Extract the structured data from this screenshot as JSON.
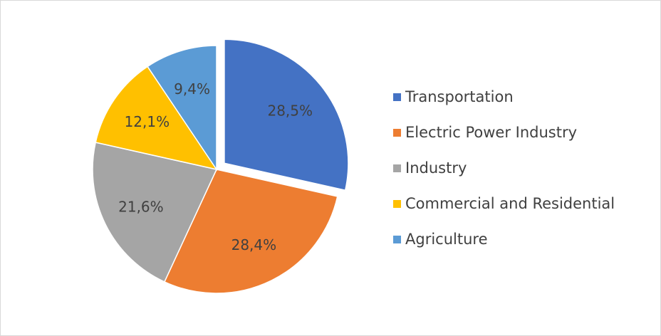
{
  "chart_data": {
    "type": "pie",
    "title": "",
    "legend_position": "right",
    "exploded_slice": "Transportation",
    "slices": [
      {
        "label": "Transportation",
        "value": 28.5,
        "display": "28,5%",
        "color": "#4472C4"
      },
      {
        "label": "Electric Power Industry",
        "value": 28.4,
        "display": "28,4%",
        "color": "#ED7D31"
      },
      {
        "label": "Industry",
        "value": 21.6,
        "display": "21,6%",
        "color": "#A5A5A5"
      },
      {
        "label": "Commercial and Residential",
        "value": 12.1,
        "display": "12,1%",
        "color": "#FFC000"
      },
      {
        "label": "Agriculture",
        "value": 9.4,
        "display": "9,4%",
        "color": "#5B9BD5"
      }
    ]
  }
}
